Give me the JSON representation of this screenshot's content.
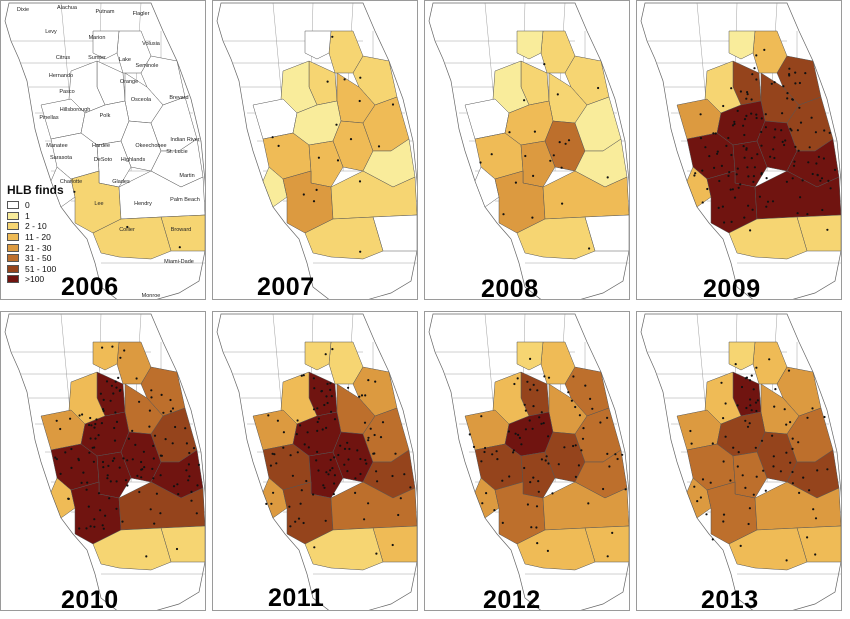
{
  "legend": {
    "title": "HLB finds",
    "classes": [
      {
        "label": "0",
        "color": "#ffffff"
      },
      {
        "label": "1",
        "color": "#f9ec9b"
      },
      {
        "label": "2 - 10",
        "color": "#f6d572"
      },
      {
        "label": "11 - 20",
        "color": "#efbb56"
      },
      {
        "label": "21 - 30",
        "color": "#dc9a40"
      },
      {
        "label": "31 - 50",
        "color": "#bd6f2c"
      },
      {
        "label": "51 - 100",
        "color": "#95441c"
      },
      {
        "label": ">100",
        "color": "#701410"
      }
    ]
  },
  "county_labels": [
    "Dixie",
    "Alachua",
    "Putnam",
    "Flagler",
    "Volusia",
    "Levy",
    "Marion",
    "Citrus",
    "Sumter",
    "Lake",
    "Seminole",
    "Hernando",
    "Orange",
    "Pasco",
    "Osceola",
    "Brevard",
    "Pinellas",
    "Hillsborough",
    "Polk",
    "Indian River",
    "Manatee",
    "Hardee",
    "Okeechobee",
    "St. Lucie",
    "Sarasota",
    "DeSoto",
    "Highlands",
    "Martin",
    "Charlotte",
    "Glades",
    "Lee",
    "Hendry",
    "Palm Beach",
    "Collier",
    "Broward",
    "Miami-Dade",
    "Monroe"
  ],
  "panels": [
    {
      "year": "2006",
      "levels": {
        "A": 0,
        "B": 0,
        "C": 0,
        "D": 0,
        "E": 0,
        "F": 0,
        "G": 0,
        "H": 0,
        "I": 0,
        "J": 0,
        "K": 0,
        "L": 0,
        "M": 0,
        "N": 0,
        "O": 2,
        "P": 0,
        "Q": 2,
        "R": 2
      }
    },
    {
      "year": "2007",
      "levels": {
        "A": 2,
        "B": 0,
        "C": 2,
        "D": 2,
        "E": 1,
        "F": 3,
        "G": 0,
        "H": 1,
        "I": 3,
        "J": 3,
        "K": 3,
        "L": 1,
        "M": 3,
        "N": 1,
        "O": 4,
        "P": 2,
        "Q": 0,
        "R": 2
      }
    },
    {
      "year": "2008",
      "levels": {
        "A": 2,
        "B": 1,
        "C": 2,
        "D": 2,
        "E": 1,
        "F": 2,
        "G": 0,
        "H": 3,
        "I": 5,
        "J": 3,
        "K": 1,
        "L": 0,
        "M": 4,
        "N": 1,
        "O": 4,
        "P": 3,
        "Q": 0,
        "R": 2
      }
    },
    {
      "year": "2009",
      "levels": {
        "A": 3,
        "B": 1,
        "C": 6,
        "D": 6,
        "E": 2,
        "F": 6,
        "G": 4,
        "H": 7,
        "I": 7,
        "J": 7,
        "K": 6,
        "L": 3,
        "M": 7,
        "N": 7,
        "O": 7,
        "P": 7,
        "Q": 2,
        "R": 2
      }
    },
    {
      "year": "2010",
      "levels": {
        "A": 4,
        "B": 3,
        "C": 7,
        "D": 5,
        "E": 3,
        "F": 5,
        "G": 4,
        "H": 7,
        "I": 7,
        "J": 7,
        "K": 6,
        "L": 3,
        "M": 7,
        "N": 7,
        "O": 7,
        "P": 6,
        "Q": 2,
        "R": 2
      }
    },
    {
      "year": "2011",
      "levels": {
        "A": 2,
        "B": 2,
        "C": 7,
        "D": 4,
        "E": 3,
        "F": 5,
        "G": 4,
        "H": 7,
        "I": 7,
        "J": 6,
        "K": 5,
        "L": 4,
        "M": 7,
        "N": 6,
        "O": 6,
        "P": 5,
        "Q": 3,
        "R": 2
      }
    },
    {
      "year": "2012",
      "levels": {
        "A": 3,
        "B": 2,
        "C": 6,
        "D": 5,
        "E": 3,
        "F": 4,
        "G": 4,
        "H": 7,
        "I": 6,
        "J": 6,
        "K": 5,
        "L": 4,
        "M": 6,
        "N": 5,
        "O": 5,
        "P": 4,
        "Q": 3,
        "R": 3
      }
    },
    {
      "year": "2013",
      "levels": {
        "A": 3,
        "B": 2,
        "C": 7,
        "D": 4,
        "E": 3,
        "F": 4,
        "G": 4,
        "H": 6,
        "I": 6,
        "J": 5,
        "K": 5,
        "L": 4,
        "M": 5,
        "N": 6,
        "O": 5,
        "P": 4,
        "Q": 3,
        "R": 3
      }
    }
  ]
}
